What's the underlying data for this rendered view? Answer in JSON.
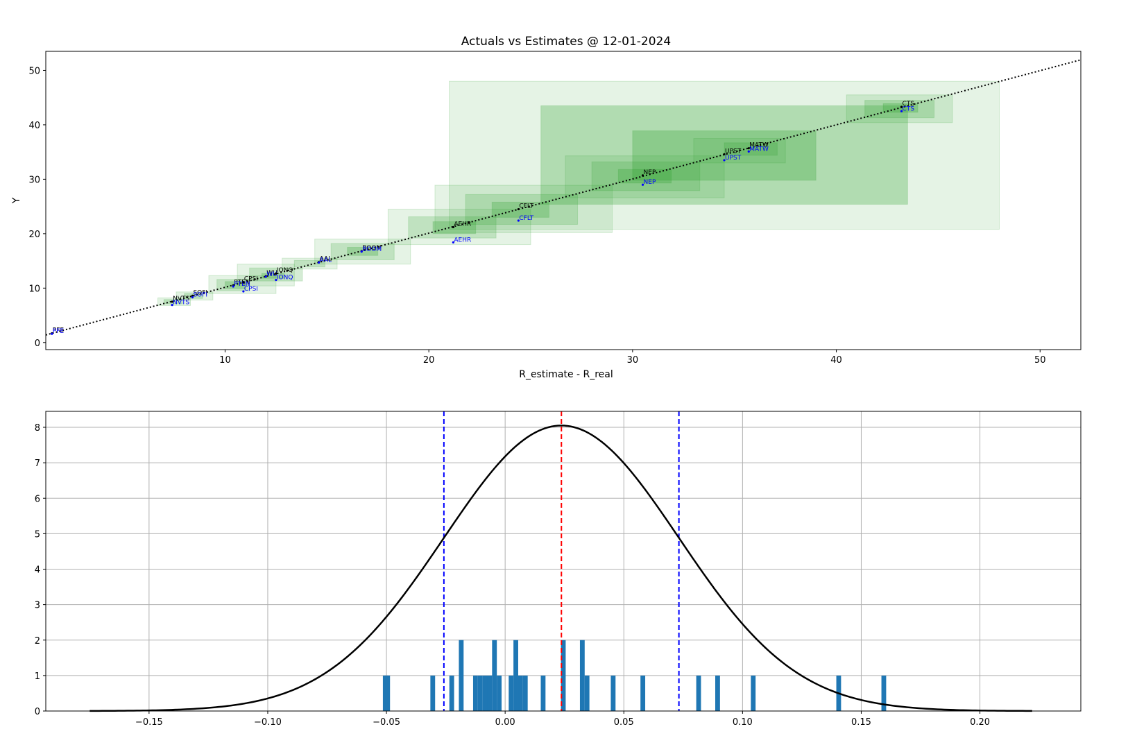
{
  "chart_data": [
    {
      "type": "scatter",
      "title": "Actuals vs Estimates  @ 12-01-2024",
      "xlabel": "R_estimate - R_real",
      "ylabel": "Y",
      "xlim": [
        1.2,
        52
      ],
      "ylim": [
        -1.3,
        53.5
      ],
      "xticks": [
        10,
        20,
        30,
        40,
        50
      ],
      "yticks": [
        0,
        10,
        20,
        30,
        40,
        50
      ],
      "grid": false,
      "colors": {
        "actual": "#000000",
        "estimate": "#0000ff",
        "boxes": "#2ca02c",
        "fit_line": "#000000"
      },
      "fit_line": {
        "slope": 0.995,
        "intercept": 0.2,
        "style": "dotted"
      },
      "points": [
        {
          "label": "PFE",
          "x": 1.5,
          "y_actual": 1.7,
          "y_estimate": 1.6
        },
        {
          "label": "NVTS",
          "x": 7.4,
          "y_actual": 7.5,
          "y_estimate": 6.9
        },
        {
          "label": "SOFI",
          "x": 8.4,
          "y_actual": 8.6,
          "y_estimate": 8.3
        },
        {
          "label": "PTEN",
          "x": 10.4,
          "y_actual": 10.5,
          "y_estimate": 10.3
        },
        {
          "label": "CPSI",
          "x": 10.9,
          "y_actual": 11.1,
          "y_estimate": 9.4
        },
        {
          "label": "WU",
          "x": 12.0,
          "y_actual": 12.2,
          "y_estimate": 12.1
        },
        {
          "label": "IONQ",
          "x": 12.5,
          "y_actual": 12.7,
          "y_estimate": 11.5
        },
        {
          "label": "AAL",
          "x": 14.6,
          "y_actual": 14.8,
          "y_estimate": 14.7
        },
        {
          "label": "BOOM",
          "x": 16.7,
          "y_actual": 16.8,
          "y_estimate": 16.7
        },
        {
          "label": "AEHR",
          "x": 21.2,
          "y_actual": 21.2,
          "y_estimate": 18.4
        },
        {
          "label": "CFLT",
          "x": 24.4,
          "y_actual": 24.5,
          "y_estimate": 22.4
        },
        {
          "label": "NEP",
          "x": 30.5,
          "y_actual": 30.7,
          "y_estimate": 29.0
        },
        {
          "label": "UPST",
          "x": 34.5,
          "y_actual": 34.6,
          "y_estimate": 33.5
        },
        {
          "label": "MATW",
          "x": 35.7,
          "y_actual": 35.7,
          "y_estimate": 35.1
        },
        {
          "label": "CTS",
          "x": 43.2,
          "y_actual": 43.3,
          "y_estimate": 42.5
        }
      ],
      "boxes": [
        {
          "x0": 21.0,
          "x1": 48.0,
          "y0": 20.8,
          "y1": 48.0,
          "opacity": 0.12
        },
        {
          "x0": 25.5,
          "x1": 43.5,
          "y0": 25.4,
          "y1": 43.5,
          "opacity": 0.28
        },
        {
          "x0": 30.0,
          "x1": 39.0,
          "y0": 29.8,
          "y1": 38.9,
          "opacity": 0.28
        },
        {
          "x0": 40.5,
          "x1": 45.7,
          "y0": 40.4,
          "y1": 45.5,
          "opacity": 0.14
        },
        {
          "x0": 41.4,
          "x1": 44.8,
          "y0": 41.3,
          "y1": 44.5,
          "opacity": 0.22
        },
        {
          "x0": 42.3,
          "x1": 44.0,
          "y0": 42.3,
          "y1": 43.9,
          "opacity": 0.28
        },
        {
          "x0": 33.0,
          "x1": 37.5,
          "y0": 33.0,
          "y1": 37.5,
          "opacity": 0.12
        },
        {
          "x0": 34.5,
          "x1": 37.1,
          "y0": 34.4,
          "y1": 36.7,
          "opacity": 0.22
        },
        {
          "x0": 26.7,
          "x1": 34.5,
          "y0": 26.6,
          "y1": 34.3,
          "opacity": 0.12
        },
        {
          "x0": 28.0,
          "x1": 33.3,
          "y0": 27.9,
          "y1": 33.2,
          "opacity": 0.2
        },
        {
          "x0": 29.3,
          "x1": 31.9,
          "y0": 29.3,
          "y1": 31.8,
          "opacity": 0.26
        },
        {
          "x0": 20.3,
          "x1": 29.0,
          "y0": 20.2,
          "y1": 28.9,
          "opacity": 0.12
        },
        {
          "x0": 21.8,
          "x1": 27.3,
          "y0": 21.7,
          "y1": 27.2,
          "opacity": 0.2
        },
        {
          "x0": 23.1,
          "x1": 25.9,
          "y0": 23.0,
          "y1": 25.8,
          "opacity": 0.26
        },
        {
          "x0": 18.0,
          "x1": 25.0,
          "y0": 18.0,
          "y1": 24.5,
          "opacity": 0.12
        },
        {
          "x0": 19.0,
          "x1": 23.3,
          "y0": 19.2,
          "y1": 23.1,
          "opacity": 0.2
        },
        {
          "x0": 20.2,
          "x1": 22.3,
          "y0": 20.0,
          "y1": 22.2,
          "opacity": 0.26
        },
        {
          "x0": 14.4,
          "x1": 19.1,
          "y0": 14.4,
          "y1": 19.0,
          "opacity": 0.12
        },
        {
          "x0": 15.2,
          "x1": 18.3,
          "y0": 15.2,
          "y1": 18.2,
          "opacity": 0.2
        },
        {
          "x0": 16.0,
          "x1": 17.5,
          "y0": 16.0,
          "y1": 17.5,
          "opacity": 0.26
        },
        {
          "x0": 12.8,
          "x1": 15.5,
          "y0": 13.5,
          "y1": 15.5,
          "opacity": 0.12
        },
        {
          "x0": 13.4,
          "x1": 14.9,
          "y0": 13.9,
          "y1": 15.1,
          "opacity": 0.2
        },
        {
          "x0": 10.6,
          "x1": 13.4,
          "y0": 10.4,
          "y1": 14.4,
          "opacity": 0.12
        },
        {
          "x0": 11.2,
          "x1": 13.8,
          "y0": 11.3,
          "y1": 13.7,
          "opacity": 0.2
        },
        {
          "x0": 11.8,
          "x1": 12.9,
          "y0": 11.8,
          "y1": 12.7,
          "opacity": 0.26
        },
        {
          "x0": 9.2,
          "x1": 12.5,
          "y0": 9.0,
          "y1": 12.3,
          "opacity": 0.12
        },
        {
          "x0": 9.6,
          "x1": 11.2,
          "y0": 9.5,
          "y1": 11.6,
          "opacity": 0.2
        },
        {
          "x0": 10.0,
          "x1": 11.0,
          "y0": 9.9,
          "y1": 11.2,
          "opacity": 0.26
        },
        {
          "x0": 7.6,
          "x1": 9.4,
          "y0": 7.8,
          "y1": 9.3,
          "opacity": 0.14
        },
        {
          "x0": 8.0,
          "x1": 8.9,
          "y0": 8.1,
          "y1": 9.0,
          "opacity": 0.22
        },
        {
          "x0": 6.7,
          "x1": 8.3,
          "y0": 6.8,
          "y1": 8.2,
          "opacity": 0.14
        },
        {
          "x0": 7.0,
          "x1": 7.9,
          "y0": 7.1,
          "y1": 7.9,
          "opacity": 0.22
        }
      ]
    },
    {
      "type": "bar",
      "title": "",
      "xlabel": "",
      "ylabel": "",
      "xlim": [
        -0.1935,
        0.2425
      ],
      "ylim": [
        0,
        8.45
      ],
      "xticks": [
        -0.15,
        -0.1,
        -0.05,
        0.0,
        0.05,
        0.1,
        0.15,
        0.2
      ],
      "xtick_labels": [
        "−0.15",
        "−0.10",
        "−0.05",
        "0.00",
        "0.05",
        "0.10",
        "0.15",
        "0.20"
      ],
      "yticks": [
        0,
        1,
        2,
        3,
        4,
        5,
        6,
        7,
        8
      ],
      "grid": true,
      "colors": {
        "bars": "#1f77b4",
        "curve": "#000000",
        "mean_line": "#ff0000",
        "sigma_lines": "#0000ff"
      },
      "bin_width": 0.002,
      "bins": [
        {
          "x": -0.0505,
          "count": 1
        },
        {
          "x": -0.0495,
          "count": 1
        },
        {
          "x": -0.0305,
          "count": 1
        },
        {
          "x": -0.0225,
          "count": 1
        },
        {
          "x": -0.0185,
          "count": 2
        },
        {
          "x": -0.0125,
          "count": 1
        },
        {
          "x": -0.0105,
          "count": 1
        },
        {
          "x": -0.0085,
          "count": 1
        },
        {
          "x": -0.0065,
          "count": 1
        },
        {
          "x": -0.0045,
          "count": 2
        },
        {
          "x": -0.0025,
          "count": 1
        },
        {
          "x": 0.0025,
          "count": 1
        },
        {
          "x": 0.0045,
          "count": 2
        },
        {
          "x": 0.0065,
          "count": 1
        },
        {
          "x": 0.0085,
          "count": 1
        },
        {
          "x": 0.016,
          "count": 1
        },
        {
          "x": 0.0245,
          "count": 2
        },
        {
          "x": 0.0325,
          "count": 2
        },
        {
          "x": 0.0345,
          "count": 1
        },
        {
          "x": 0.0455,
          "count": 1
        },
        {
          "x": 0.058,
          "count": 1
        },
        {
          "x": 0.0815,
          "count": 1
        },
        {
          "x": 0.0895,
          "count": 1
        },
        {
          "x": 0.1045,
          "count": 1
        },
        {
          "x": 0.1405,
          "count": 1
        },
        {
          "x": 0.1595,
          "count": 1
        }
      ],
      "normal_curve": {
        "mean": 0.0237,
        "sd": 0.0495,
        "peak": 8.05,
        "x_range": [
          -0.175,
          0.222
        ]
      },
      "mean_line": 0.0237,
      "sigma_lines": [
        -0.0258,
        0.0732
      ]
    }
  ]
}
